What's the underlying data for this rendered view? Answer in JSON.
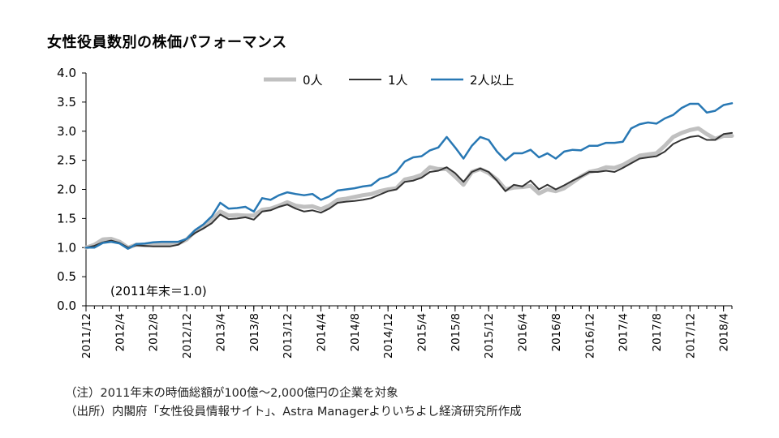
{
  "title": "女性役員数別の株価パフォーマンス",
  "notes": {
    "line1": "（注）2011年末の時価総額が100億～2,000億円の企業を対象",
    "line2": "（出所）内閣府「女性役員情報サイト」、Astra Managerよりいちよし経済研究所作成"
  },
  "chart_data": {
    "type": "line",
    "title": "女性役員数別の株価パフォーマンス",
    "xlabel": "",
    "ylabel": "",
    "ylim": [
      0,
      4
    ],
    "yticks": [
      "0.0",
      "0.5",
      "1.0",
      "1.5",
      "2.0",
      "2.5",
      "3.0",
      "3.5",
      "4.0"
    ],
    "x_tick_labels": [
      "2011/12",
      "2012/4",
      "2012/8",
      "2012/12",
      "2013/4",
      "2013/8",
      "2013/12",
      "2014/4",
      "2014/8",
      "2014/12",
      "2015/4",
      "2015/8",
      "2015/12",
      "2016/4",
      "2016/8",
      "2016/12",
      "2017/4",
      "2017/8",
      "2017/12",
      "2018/4"
    ],
    "x": [
      "2011/12",
      "2012/1",
      "2012/2",
      "2012/3",
      "2012/4",
      "2012/5",
      "2012/6",
      "2012/7",
      "2012/8",
      "2012/9",
      "2012/10",
      "2012/11",
      "2012/12",
      "2013/1",
      "2013/2",
      "2013/3",
      "2013/4",
      "2013/5",
      "2013/6",
      "2013/7",
      "2013/8",
      "2013/9",
      "2013/10",
      "2013/11",
      "2013/12",
      "2014/1",
      "2014/2",
      "2014/3",
      "2014/4",
      "2014/5",
      "2014/6",
      "2014/7",
      "2014/8",
      "2014/9",
      "2014/10",
      "2014/11",
      "2014/12",
      "2015/1",
      "2015/2",
      "2015/3",
      "2015/4",
      "2015/5",
      "2015/6",
      "2015/7",
      "2015/8",
      "2015/9",
      "2015/10",
      "2015/11",
      "2015/12",
      "2016/1",
      "2016/2",
      "2016/3",
      "2016/4",
      "2016/5",
      "2016/6",
      "2016/7",
      "2016/8",
      "2016/9",
      "2016/10",
      "2016/11",
      "2016/12",
      "2017/1",
      "2017/2",
      "2017/3",
      "2017/4",
      "2017/5",
      "2017/6",
      "2017/7",
      "2017/8",
      "2017/9",
      "2017/10",
      "2017/11",
      "2017/12",
      "2018/1",
      "2018/2",
      "2018/3",
      "2018/4",
      "2018/5"
    ],
    "legend_position": "top",
    "grid": false,
    "annotation": "(2011年末＝1.0)",
    "series": [
      {
        "name": "0人",
        "color": "#c0c0c0",
        "width": 5,
        "values": [
          1.0,
          1.05,
          1.14,
          1.15,
          1.1,
          1.0,
          1.05,
          1.04,
          1.05,
          1.06,
          1.06,
          1.07,
          1.14,
          1.28,
          1.35,
          1.48,
          1.62,
          1.55,
          1.56,
          1.55,
          1.55,
          1.65,
          1.67,
          1.72,
          1.78,
          1.72,
          1.7,
          1.71,
          1.66,
          1.72,
          1.82,
          1.84,
          1.87,
          1.9,
          1.92,
          1.97,
          2.0,
          2.02,
          2.17,
          2.2,
          2.25,
          2.38,
          2.35,
          2.35,
          2.22,
          2.08,
          2.3,
          2.35,
          2.28,
          2.17,
          2.0,
          2.03,
          2.04,
          2.06,
          1.93,
          2.0,
          1.97,
          2.02,
          2.12,
          2.22,
          2.3,
          2.33,
          2.38,
          2.37,
          2.42,
          2.5,
          2.58,
          2.6,
          2.62,
          2.75,
          2.9,
          2.97,
          3.02,
          3.05,
          2.95,
          2.87,
          2.92,
          2.92
        ]
      },
      {
        "name": "1人",
        "color": "#333333",
        "width": 2,
        "values": [
          1.0,
          1.03,
          1.09,
          1.12,
          1.08,
          1.0,
          1.04,
          1.03,
          1.02,
          1.02,
          1.02,
          1.05,
          1.15,
          1.25,
          1.33,
          1.42,
          1.57,
          1.49,
          1.5,
          1.52,
          1.48,
          1.62,
          1.64,
          1.7,
          1.74,
          1.67,
          1.62,
          1.64,
          1.6,
          1.67,
          1.77,
          1.79,
          1.8,
          1.82,
          1.85,
          1.91,
          1.97,
          2.0,
          2.13,
          2.15,
          2.2,
          2.3,
          2.32,
          2.38,
          2.28,
          2.13,
          2.3,
          2.36,
          2.3,
          2.15,
          1.97,
          2.08,
          2.05,
          2.15,
          2.0,
          2.08,
          2.0,
          2.07,
          2.15,
          2.22,
          2.3,
          2.3,
          2.32,
          2.3,
          2.37,
          2.45,
          2.53,
          2.55,
          2.57,
          2.65,
          2.78,
          2.85,
          2.9,
          2.92,
          2.85,
          2.85,
          2.95,
          2.97
        ]
      },
      {
        "name": "2人以上",
        "color": "#2878b4",
        "width": 2.5,
        "values": [
          1.0,
          1.0,
          1.08,
          1.1,
          1.07,
          0.98,
          1.06,
          1.07,
          1.09,
          1.1,
          1.1,
          1.1,
          1.15,
          1.3,
          1.4,
          1.54,
          1.77,
          1.67,
          1.68,
          1.7,
          1.62,
          1.85,
          1.82,
          1.9,
          1.95,
          1.92,
          1.9,
          1.92,
          1.82,
          1.88,
          1.98,
          2.0,
          2.02,
          2.05,
          2.07,
          2.18,
          2.22,
          2.3,
          2.48,
          2.55,
          2.57,
          2.67,
          2.72,
          2.9,
          2.72,
          2.53,
          2.75,
          2.9,
          2.85,
          2.65,
          2.5,
          2.62,
          2.62,
          2.68,
          2.55,
          2.62,
          2.53,
          2.65,
          2.68,
          2.67,
          2.75,
          2.75,
          2.8,
          2.8,
          2.82,
          3.05,
          3.12,
          3.15,
          3.13,
          3.22,
          3.28,
          3.4,
          3.47,
          3.47,
          3.32,
          3.35,
          3.45,
          3.48
        ]
      }
    ]
  }
}
